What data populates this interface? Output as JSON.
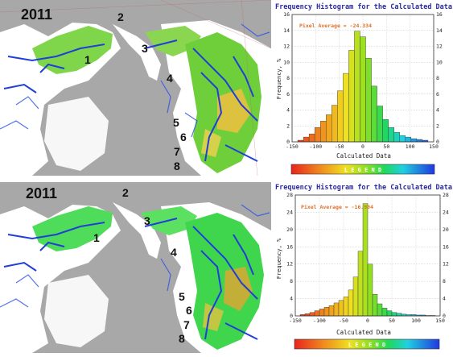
{
  "panels": [
    {
      "year": "2011",
      "region_numbers": [
        "1",
        "2",
        "3",
        "4",
        "5",
        "6",
        "7",
        "8"
      ],
      "histogram": {
        "title": "Frequency Histogram for the Calculated Data",
        "pixel_average": "Pixel Average = -24.334",
        "xlabel": "Calculated Data",
        "ylabel": "Frequency, %",
        "legend_text": "L E G E N D"
      }
    },
    {
      "year": "2011",
      "region_numbers": [
        "1",
        "2",
        "3",
        "4",
        "5",
        "6",
        "7",
        "8"
      ],
      "histogram": {
        "title": "Frequency Histogram for the Calculated Data",
        "pixel_average": "Pixel Average = -16.994",
        "xlabel": "Calculated Data",
        "ylabel": "Frequency, %",
        "legend_text": "L E G E N D"
      }
    }
  ],
  "chart_data": [
    {
      "type": "bar",
      "title": "Frequency Histogram for the Calculated Data",
      "xlabel": "Calculated Data",
      "ylabel": "Frequency, %",
      "annotation": "Pixel Average = -24.334",
      "xlim": [
        -150,
        150
      ],
      "ylim": [
        0,
        16
      ],
      "x_ticks": [
        -150,
        -100,
        -50,
        0,
        50,
        100,
        150
      ],
      "y_ticks": [
        0,
        2,
        4,
        6,
        8,
        10,
        12,
        14,
        16
      ],
      "bin_width": 12,
      "bin_starts": [
        -138,
        -126,
        -114,
        -102,
        -90,
        -78,
        -66,
        -54,
        -42,
        -30,
        -18,
        -6,
        6,
        18,
        30,
        42,
        54,
        66,
        78,
        90,
        102,
        114,
        126
      ],
      "values": [
        0.2,
        0.6,
        1.0,
        1.8,
        2.6,
        3.4,
        4.6,
        6.4,
        8.6,
        11.5,
        13.9,
        13.2,
        10.5,
        7.0,
        4.5,
        2.8,
        1.8,
        1.2,
        0.8,
        0.6,
        0.4,
        0.3,
        0.2
      ],
      "grid": true
    },
    {
      "type": "bar",
      "title": "Frequency Histogram for the Calculated Data",
      "xlabel": "Calculated Data",
      "ylabel": "Frequency, %",
      "annotation": "Pixel Average = -16.994",
      "xlim": [
        -150,
        150
      ],
      "ylim": [
        0,
        28
      ],
      "x_ticks": [
        -150,
        -100,
        -50,
        0,
        50,
        100,
        150
      ],
      "y_ticks": [
        0,
        4,
        8,
        12,
        16,
        20,
        24,
        28
      ],
      "bin_width": 10,
      "bin_starts": [
        -140,
        -130,
        -120,
        -110,
        -100,
        -90,
        -80,
        -70,
        -60,
        -50,
        -40,
        -30,
        -20,
        -10,
        0,
        10,
        20,
        30,
        40,
        50,
        60,
        70,
        80,
        90,
        100,
        110,
        120,
        130
      ],
      "values": [
        0.3,
        0.5,
        0.8,
        1.2,
        1.6,
        2.0,
        2.4,
        3.0,
        3.6,
        4.4,
        6.0,
        9.0,
        15.0,
        26.0,
        12.0,
        5.0,
        2.8,
        1.8,
        1.2,
        0.8,
        0.6,
        0.4,
        0.3,
        0.3,
        0.2,
        0.2,
        0.1,
        0.1
      ],
      "grid": true
    }
  ]
}
